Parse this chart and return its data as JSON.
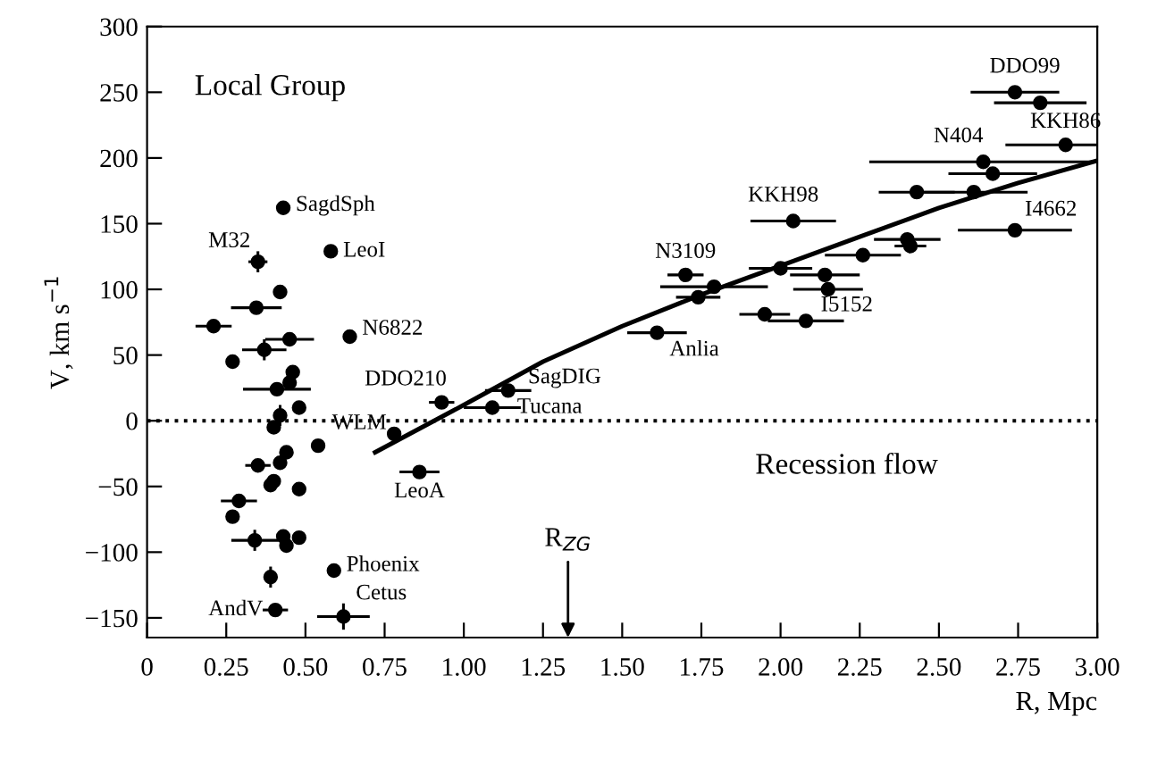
{
  "chart_data": {
    "type": "scatter",
    "xlabel": "R, Mpc",
    "ylabel": "V, km s$^{−1}$",
    "xlim": [
      0,
      3.0
    ],
    "ylim": [
      -165,
      300
    ],
    "xticks": [
      0,
      {
        "value": 0.25,
        "label": "0.25"
      },
      {
        "value": 0.5,
        "label": "0.50"
      },
      {
        "value": 0.75,
        "label": "0.75"
      },
      {
        "value": 1.0,
        "label": "1.00"
      },
      {
        "value": 1.25,
        "label": "1.25"
      },
      {
        "value": 1.5,
        "label": "1.50"
      },
      {
        "value": 1.75,
        "label": "1.75"
      },
      {
        "value": 2.0,
        "label": "2.00"
      },
      {
        "value": 2.25,
        "label": "2.25"
      },
      {
        "value": 2.5,
        "label": "2.50"
      },
      {
        "value": 2.75,
        "label": "2.75"
      },
      {
        "value": 3.0,
        "label": "3.00"
      }
    ],
    "yticks": [
      -150,
      -100,
      -50,
      0,
      50,
      100,
      150,
      200,
      250,
      300
    ],
    "grid": false,
    "marker": "circle",
    "series": [
      {
        "color": "#000000",
        "x": [
          0.43,
          0.35,
          0.58,
          0.42,
          0.345,
          0.21,
          0.64,
          0.45,
          0.37,
          0.27,
          0.46,
          0.45,
          0.41,
          0.48,
          0.42,
          0.93,
          1.09,
          0.4,
          0.78,
          0.54,
          0.44,
          0.35,
          0.42,
          0.4,
          0.39,
          0.48,
          0.86,
          0.29,
          0.27,
          0.34,
          0.43,
          0.44,
          0.48,
          0.59,
          0.39,
          0.405,
          0.62,
          1.14,
          1.61,
          1.7,
          1.79,
          1.74,
          1.95,
          2.08,
          2.0,
          2.14,
          2.15,
          2.26,
          2.4,
          2.41,
          2.04,
          2.43,
          2.61,
          2.67,
          2.64,
          2.74,
          2.9,
          2.74,
          2.82
        ],
        "values": [
          162,
          121,
          129,
          98,
          86,
          72,
          64,
          62,
          54,
          45,
          37,
          29,
          24,
          10,
          4,
          14,
          10,
          -5,
          -10,
          -19,
          -24,
          -34,
          -32,
          -46,
          -49,
          -52,
          -39,
          -61,
          -73,
          -91,
          -88,
          -95,
          -89,
          -114,
          -119,
          -144,
          -149,
          23,
          67,
          111,
          102,
          94,
          81,
          76,
          116,
          111,
          100,
          126,
          138,
          133,
          152,
          174,
          174,
          188,
          197,
          145,
          210,
          250,
          242
        ],
        "xerrors": [
          null,
          0.03,
          null,
          null,
          0.08,
          0.057,
          null,
          0.077,
          0.07,
          null,
          null,
          null,
          0.107,
          null,
          null,
          0.04,
          0.09,
          null,
          null,
          null,
          null,
          0.04,
          null,
          null,
          null,
          null,
          0.063,
          0.057,
          null,
          0.074,
          null,
          null,
          null,
          null,
          null,
          0.04,
          0.083,
          0.073,
          0.094,
          0.057,
          0.17,
          0.07,
          0.08,
          0.12,
          0.1,
          0.11,
          0.11,
          0.12,
          0.105,
          0.05,
          0.135,
          0.12,
          0.17,
          0.14,
          0.36,
          0.18,
          0.19,
          0.14,
          0.146
        ],
        "errors": [
          null,
          8,
          null,
          null,
          null,
          null,
          null,
          null,
          8,
          null,
          null,
          null,
          null,
          null,
          8,
          null,
          null,
          null,
          null,
          null,
          null,
          null,
          null,
          null,
          null,
          null,
          null,
          null,
          null,
          8,
          null,
          null,
          null,
          null,
          8,
          null,
          10,
          null,
          null,
          null,
          null,
          null,
          null,
          null,
          null,
          null,
          null,
          null,
          null,
          null,
          null,
          null,
          null,
          null,
          null,
          null,
          null,
          null,
          null
        ]
      },
      {
        "type": "line",
        "color": "#000000",
        "marker": "none",
        "x": [
          0.72,
          1.0,
          1.25,
          1.5,
          1.75,
          2.0,
          2.25,
          2.5,
          2.75,
          3.0
        ],
        "values": [
          -24,
          12,
          45,
          72,
          96,
          118,
          140,
          162,
          181,
          198
        ]
      }
    ],
    "ref_lines": [
      {
        "axis": "y",
        "value": 0,
        "line_style": "dotted",
        "color": "#000000"
      }
    ],
    "annotations": [
      "Local Group",
      "Recession flow",
      {
        "text": "SagdSph",
        "x": 0.43,
        "y": 162
      },
      {
        "text": "M32",
        "x": 0.35,
        "y": 121
      },
      {
        "text": "LeoI",
        "x": 0.58,
        "y": 129
      },
      {
        "text": "N6822",
        "x": 0.64,
        "y": 64
      },
      {
        "text": "DDO210",
        "x": 0.93,
        "y": 14
      },
      {
        "text": "WLM",
        "x": 0.78,
        "y": -10
      },
      {
        "text": "LeoA",
        "x": 0.86,
        "y": -39
      },
      {
        "text": "Phoenix",
        "x": 0.59,
        "y": -114
      },
      {
        "text": "AndV",
        "x": 0.405,
        "y": -144
      },
      {
        "text": "Cetus",
        "x": 0.62,
        "y": -149
      },
      {
        "text": "SagDIG",
        "x": 1.14,
        "y": 23
      },
      {
        "text": "Tucana",
        "x": 1.09,
        "y": 10
      },
      {
        "text": "Anlia",
        "x": 1.61,
        "y": 67
      },
      {
        "text": "N3109",
        "x": 1.7,
        "y": 111
      },
      {
        "text": "I5152",
        "x": 2.08,
        "y": 76
      },
      {
        "text": "KKH98",
        "x": 2.04,
        "y": 152
      },
      {
        "text": "N404",
        "x": 2.64,
        "y": 197
      },
      {
        "text": "KKH86",
        "x": 2.9,
        "y": 210
      },
      {
        "text": "DDO99",
        "x": 2.74,
        "y": 250
      },
      {
        "text": "I4662",
        "x": 2.74,
        "y": 145
      },
      "R$_{ZG}$"
    ]
  }
}
